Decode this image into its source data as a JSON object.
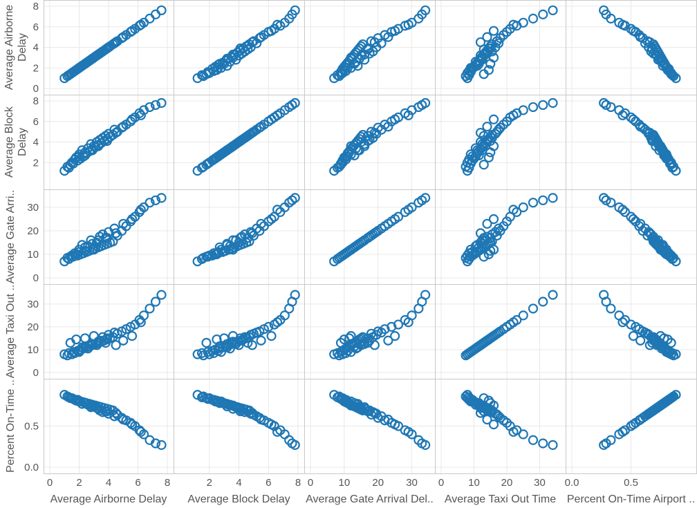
{
  "chart_data": {
    "type": "scatter",
    "subtype": "scatter-matrix",
    "marker": "open-circle",
    "mark_color": "#1f77b4",
    "grid": true,
    "variables": [
      {
        "label": "Average Airborne Delay",
        "row_label": [
          "Average Airborne",
          "Delay"
        ],
        "column_label": "Average Airborne Delay",
        "range": [
          0,
          8
        ],
        "ticks": [
          0,
          2,
          4,
          6,
          8
        ],
        "tick_labels": [
          "0",
          "2",
          "4",
          "6",
          "8"
        ]
      },
      {
        "label": "Average Block Delay",
        "row_label": [
          "Average Block",
          "Delay"
        ],
        "column_label": "Average Block Delay",
        "range": [
          0,
          8
        ],
        "ticks": [
          2,
          4,
          6,
          8
        ],
        "tick_labels": [
          "2",
          "4",
          "6",
          "8"
        ]
      },
      {
        "label": "Average Gate Arrival Delay",
        "row_label": [
          "Average Gate Arri.."
        ],
        "column_label": "Average Gate Arrival Del..",
        "range": [
          0,
          35
        ],
        "ticks": [
          0,
          10,
          20,
          30
        ],
        "tick_labels": [
          "0",
          "10",
          "20",
          "30"
        ]
      },
      {
        "label": "Average Taxi Out Time",
        "row_label": [
          "Average Taxi Out .."
        ],
        "column_label": "Average Taxi Out Time",
        "range": [
          0,
          36
        ],
        "ticks": [
          0,
          10,
          20,
          30
        ],
        "tick_labels": [
          "0",
          "10",
          "20",
          "30"
        ]
      },
      {
        "label": "Percent On-Time Airport Departures",
        "row_label": [
          "Percent On-Time .."
        ],
        "column_label": "Percent On-Time Airport ..",
        "range": [
          0,
          1
        ],
        "ticks": [
          0,
          0.5
        ],
        "tick_labels": [
          "0.0",
          "0.5"
        ]
      }
    ],
    "records": [
      [
        1.0,
        1.2,
        7.0,
        8.0,
        0.88
      ],
      [
        1.3,
        1.5,
        8.0,
        8.5,
        0.85
      ],
      [
        1.6,
        1.9,
        9.0,
        9.0,
        0.83
      ],
      [
        1.9,
        2.2,
        9.5,
        9.5,
        0.82
      ],
      [
        2.1,
        2.4,
        10.0,
        10.0,
        0.8
      ],
      [
        2.3,
        2.6,
        10.5,
        10.5,
        0.79
      ],
      [
        2.5,
        2.9,
        11.0,
        11.0,
        0.78
      ],
      [
        2.7,
        3.1,
        11.5,
        11.5,
        0.77
      ],
      [
        2.9,
        3.3,
        12.0,
        12.0,
        0.76
      ],
      [
        3.1,
        3.5,
        12.5,
        12.5,
        0.75
      ],
      [
        3.3,
        3.7,
        13.0,
        13.0,
        0.74
      ],
      [
        3.5,
        3.9,
        13.5,
        13.5,
        0.73
      ],
      [
        3.7,
        4.1,
        14.0,
        14.0,
        0.72
      ],
      [
        3.9,
        4.3,
        14.5,
        14.5,
        0.71
      ],
      [
        4.1,
        4.5,
        15.0,
        15.0,
        0.7
      ],
      [
        4.3,
        4.7,
        15.5,
        15.5,
        0.69
      ],
      [
        2.0,
        2.8,
        12.0,
        9.0,
        0.8
      ],
      [
        2.6,
        3.4,
        13.5,
        10.5,
        0.76
      ],
      [
        3.2,
        4.0,
        15.0,
        12.0,
        0.72
      ],
      [
        3.8,
        4.6,
        17.0,
        13.0,
        0.68
      ],
      [
        1.4,
        1.8,
        9.0,
        13.0,
        0.84
      ],
      [
        1.8,
        2.5,
        10.0,
        14.5,
        0.81
      ],
      [
        2.4,
        3.0,
        11.5,
        15.0,
        0.78
      ],
      [
        3.0,
        3.6,
        12.0,
        16.0,
        0.75
      ],
      [
        4.6,
        5.0,
        18.0,
        17.0,
        0.64
      ],
      [
        4.9,
        5.4,
        20.0,
        18.0,
        0.6
      ],
      [
        5.2,
        5.7,
        22.0,
        19.0,
        0.57
      ],
      [
        5.5,
        6.0,
        24.0,
        20.0,
        0.54
      ],
      [
        5.8,
        6.4,
        26.0,
        21.0,
        0.5
      ],
      [
        6.1,
        6.8,
        28.0,
        23.0,
        0.45
      ],
      [
        6.4,
        7.1,
        30.0,
        25.0,
        0.4
      ],
      [
        6.8,
        7.4,
        32.0,
        28.0,
        0.33
      ],
      [
        7.2,
        7.6,
        33.0,
        31.0,
        0.29
      ],
      [
        7.6,
        7.8,
        34.0,
        34.0,
        0.27
      ],
      [
        2.2,
        3.2,
        14.0,
        11.0,
        0.77
      ],
      [
        2.8,
        3.8,
        16.0,
        12.5,
        0.73
      ],
      [
        3.4,
        4.2,
        17.5,
        14.0,
        0.69
      ],
      [
        3.6,
        4.4,
        18.5,
        15.5,
        0.67
      ],
      [
        4.0,
        4.8,
        19.5,
        16.5,
        0.65
      ],
      [
        4.4,
        5.2,
        21.0,
        17.5,
        0.62
      ],
      [
        1.2,
        1.6,
        8.5,
        7.5,
        0.86
      ],
      [
        1.5,
        2.0,
        9.5,
        8.0,
        0.84
      ],
      [
        1.7,
        2.3,
        10.5,
        8.5,
        0.82
      ],
      [
        2.0,
        2.6,
        11.0,
        9.5,
        0.8
      ],
      [
        2.4,
        2.7,
        13.0,
        11.5,
        0.78
      ],
      [
        2.9,
        3.2,
        14.5,
        12.5,
        0.74
      ],
      [
        3.3,
        3.6,
        16.0,
        13.5,
        0.71
      ],
      [
        3.9,
        4.1,
        17.0,
        15.0,
        0.68
      ],
      [
        4.5,
        4.9,
        19.0,
        12.0,
        0.66
      ],
      [
        5.0,
        5.5,
        23.0,
        14.0,
        0.58
      ],
      [
        5.6,
        6.2,
        25.0,
        16.0,
        0.52
      ],
      [
        6.2,
        6.6,
        29.0,
        22.0,
        0.43
      ]
    ]
  }
}
